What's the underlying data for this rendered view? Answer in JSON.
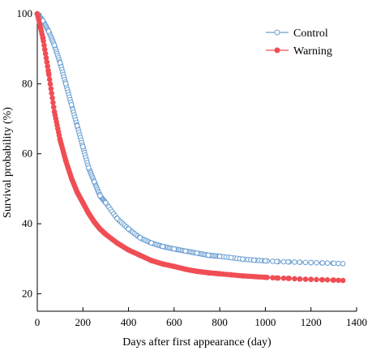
{
  "chart_data": {
    "type": "line",
    "title": "",
    "xlabel": "Days after first appearance (day)",
    "ylabel": "Survival probability (%)",
    "xlim": [
      0,
      1400
    ],
    "ylim": [
      15,
      100
    ],
    "xticks": [
      0,
      200,
      400,
      600,
      800,
      1000,
      1200,
      1400
    ],
    "yticks": [
      20,
      40,
      60,
      80,
      100
    ],
    "grid": false,
    "legend_position": "top-right",
    "series": [
      {
        "name": "Control",
        "color": "#6a9fd2",
        "marker": "open-circle",
        "x": [
          0,
          25,
          50,
          75,
          100,
          125,
          150,
          175,
          200,
          225,
          250,
          275,
          300,
          350,
          400,
          450,
          500,
          550,
          600,
          650,
          700,
          750,
          800,
          850,
          900,
          950,
          1000,
          1050,
          1100,
          1150,
          1200,
          1250,
          1300,
          1340
        ],
        "y": [
          100,
          98,
          95,
          91,
          86,
          80,
          74,
          68,
          62,
          56,
          52,
          48,
          46,
          41.5,
          38.5,
          36,
          34.5,
          33.5,
          32.8,
          32.2,
          31.6,
          31.0,
          30.7,
          30.3,
          29.9,
          29.6,
          29.4,
          29.2,
          29.1,
          29.0,
          28.9,
          28.8,
          28.7,
          28.6
        ]
      },
      {
        "name": "Warning",
        "color": "#f04e55",
        "marker": "filled-circle",
        "x": [
          0,
          25,
          50,
          75,
          100,
          125,
          150,
          175,
          200,
          225,
          250,
          275,
          300,
          350,
          400,
          450,
          500,
          550,
          600,
          650,
          700,
          750,
          800,
          850,
          900,
          950,
          1000,
          1050,
          1100,
          1150,
          1200,
          1250,
          1300,
          1340
        ],
        "y": [
          100,
          93,
          83,
          72,
          64,
          58,
          53,
          49,
          46,
          43,
          40.5,
          38.5,
          37,
          34.5,
          32.5,
          31,
          29.5,
          28.5,
          27.8,
          27.0,
          26.4,
          26.0,
          25.7,
          25.4,
          25.1,
          24.9,
          24.7,
          24.5,
          24.4,
          24.2,
          24.1,
          24.0,
          23.9,
          23.8
        ]
      }
    ]
  }
}
